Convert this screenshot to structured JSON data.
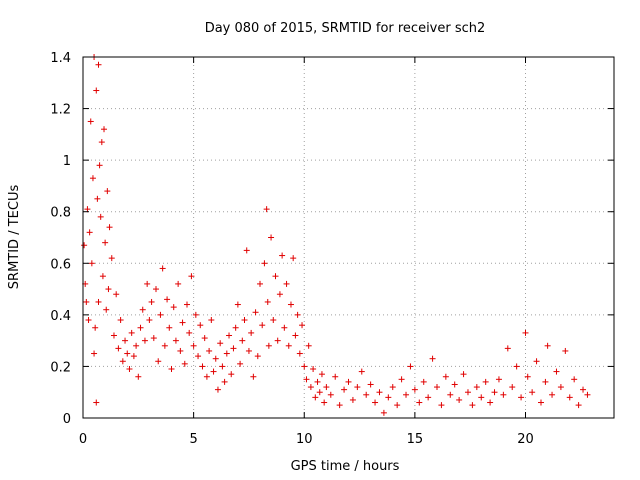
{
  "chart_data": {
    "type": "scatter",
    "title": "Day 080 of 2015, SRMTID for receiver sch2",
    "xlabel": "GPS time / hours",
    "ylabel": "SRMTID / TECUs",
    "xlim": [
      0,
      24
    ],
    "ylim": [
      0,
      1.4
    ],
    "xticks": [
      0,
      5,
      10,
      15,
      20
    ],
    "yticks": [
      0,
      0.2,
      0.4,
      0.6,
      0.8,
      1,
      1.2,
      1.4
    ],
    "xtick_labels": [
      "0",
      "5",
      "10",
      "15",
      "20"
    ],
    "ytick_labels": [
      "0",
      "0.2",
      "0.4",
      "0.6",
      "0.8",
      "1",
      "1.2",
      "1.4"
    ],
    "grid": true,
    "marker": "+",
    "color": "#e00000",
    "series": [
      {
        "name": "SRMTID",
        "points": [
          [
            0.05,
            0.67
          ],
          [
            0.1,
            0.52
          ],
          [
            0.15,
            0.45
          ],
          [
            0.2,
            0.81
          ],
          [
            0.25,
            0.38
          ],
          [
            0.3,
            0.72
          ],
          [
            0.35,
            1.15
          ],
          [
            0.4,
            0.6
          ],
          [
            0.45,
            0.93
          ],
          [
            0.5,
            0.25
          ],
          [
            0.5,
            1.4
          ],
          [
            0.55,
            0.35
          ],
          [
            0.6,
            0.06
          ],
          [
            0.6,
            1.27
          ],
          [
            0.65,
            0.85
          ],
          [
            0.7,
            1.37
          ],
          [
            0.7,
            0.45
          ],
          [
            0.75,
            0.98
          ],
          [
            0.8,
            0.78
          ],
          [
            0.85,
            1.07
          ],
          [
            0.9,
            0.55
          ],
          [
            0.95,
            1.12
          ],
          [
            1.0,
            0.68
          ],
          [
            1.05,
            0.42
          ],
          [
            1.1,
            0.88
          ],
          [
            1.15,
            0.5
          ],
          [
            1.2,
            0.74
          ],
          [
            1.3,
            0.62
          ],
          [
            1.4,
            0.32
          ],
          [
            1.5,
            0.48
          ],
          [
            1.6,
            0.27
          ],
          [
            1.7,
            0.38
          ],
          [
            1.8,
            0.22
          ],
          [
            1.9,
            0.3
          ],
          [
            2.0,
            0.25
          ],
          [
            2.1,
            0.19
          ],
          [
            2.2,
            0.33
          ],
          [
            2.3,
            0.24
          ],
          [
            2.4,
            0.28
          ],
          [
            2.5,
            0.16
          ],
          [
            2.6,
            0.35
          ],
          [
            2.7,
            0.42
          ],
          [
            2.8,
            0.3
          ],
          [
            2.9,
            0.52
          ],
          [
            3.0,
            0.38
          ],
          [
            3.1,
            0.45
          ],
          [
            3.2,
            0.31
          ],
          [
            3.3,
            0.5
          ],
          [
            3.4,
            0.22
          ],
          [
            3.5,
            0.4
          ],
          [
            3.6,
            0.58
          ],
          [
            3.7,
            0.28
          ],
          [
            3.8,
            0.46
          ],
          [
            3.9,
            0.35
          ],
          [
            4.0,
            0.19
          ],
          [
            4.1,
            0.43
          ],
          [
            4.2,
            0.3
          ],
          [
            4.3,
            0.52
          ],
          [
            4.4,
            0.26
          ],
          [
            4.5,
            0.37
          ],
          [
            4.6,
            0.21
          ],
          [
            4.7,
            0.44
          ],
          [
            4.8,
            0.33
          ],
          [
            4.9,
            0.55
          ],
          [
            5.0,
            0.28
          ],
          [
            5.1,
            0.4
          ],
          [
            5.2,
            0.24
          ],
          [
            5.3,
            0.36
          ],
          [
            5.4,
            0.2
          ],
          [
            5.5,
            0.31
          ],
          [
            5.6,
            0.16
          ],
          [
            5.7,
            0.26
          ],
          [
            5.8,
            0.38
          ],
          [
            5.9,
            0.18
          ],
          [
            6.0,
            0.23
          ],
          [
            6.1,
            0.11
          ],
          [
            6.2,
            0.29
          ],
          [
            6.3,
            0.2
          ],
          [
            6.4,
            0.14
          ],
          [
            6.5,
            0.25
          ],
          [
            6.6,
            0.32
          ],
          [
            6.7,
            0.17
          ],
          [
            6.8,
            0.27
          ],
          [
            6.9,
            0.35
          ],
          [
            7.0,
            0.44
          ],
          [
            7.1,
            0.21
          ],
          [
            7.2,
            0.3
          ],
          [
            7.3,
            0.38
          ],
          [
            7.4,
            0.65
          ],
          [
            7.5,
            0.26
          ],
          [
            7.6,
            0.33
          ],
          [
            7.7,
            0.16
          ],
          [
            7.8,
            0.41
          ],
          [
            7.9,
            0.24
          ],
          [
            8.0,
            0.52
          ],
          [
            8.1,
            0.36
          ],
          [
            8.2,
            0.6
          ],
          [
            8.3,
            0.81
          ],
          [
            8.35,
            0.45
          ],
          [
            8.4,
            0.28
          ],
          [
            8.5,
            0.7
          ],
          [
            8.6,
            0.38
          ],
          [
            8.7,
            0.55
          ],
          [
            8.8,
            0.3
          ],
          [
            8.9,
            0.48
          ],
          [
            9.0,
            0.63
          ],
          [
            9.1,
            0.35
          ],
          [
            9.2,
            0.52
          ],
          [
            9.3,
            0.28
          ],
          [
            9.4,
            0.44
          ],
          [
            9.5,
            0.62
          ],
          [
            9.6,
            0.32
          ],
          [
            9.7,
            0.4
          ],
          [
            9.8,
            0.25
          ],
          [
            9.9,
            0.36
          ],
          [
            10.0,
            0.2
          ],
          [
            10.1,
            0.15
          ],
          [
            10.2,
            0.28
          ],
          [
            10.3,
            0.12
          ],
          [
            10.4,
            0.19
          ],
          [
            10.5,
            0.08
          ],
          [
            10.6,
            0.14
          ],
          [
            10.7,
            0.1
          ],
          [
            10.8,
            0.17
          ],
          [
            10.9,
            0.06
          ],
          [
            11.0,
            0.12
          ],
          [
            11.2,
            0.09
          ],
          [
            11.4,
            0.16
          ],
          [
            11.6,
            0.05
          ],
          [
            11.8,
            0.11
          ],
          [
            12.0,
            0.14
          ],
          [
            12.2,
            0.07
          ],
          [
            12.4,
            0.12
          ],
          [
            12.6,
            0.18
          ],
          [
            12.8,
            0.09
          ],
          [
            13.0,
            0.13
          ],
          [
            13.2,
            0.06
          ],
          [
            13.4,
            0.1
          ],
          [
            13.6,
            0.02
          ],
          [
            13.8,
            0.08
          ],
          [
            14.0,
            0.12
          ],
          [
            14.2,
            0.05
          ],
          [
            14.4,
            0.15
          ],
          [
            14.6,
            0.09
          ],
          [
            14.8,
            0.2
          ],
          [
            15.0,
            0.11
          ],
          [
            15.2,
            0.06
          ],
          [
            15.4,
            0.14
          ],
          [
            15.6,
            0.08
          ],
          [
            15.8,
            0.23
          ],
          [
            16.0,
            0.12
          ],
          [
            16.2,
            0.05
          ],
          [
            16.4,
            0.16
          ],
          [
            16.6,
            0.09
          ],
          [
            16.8,
            0.13
          ],
          [
            17.0,
            0.07
          ],
          [
            17.2,
            0.17
          ],
          [
            17.4,
            0.1
          ],
          [
            17.6,
            0.05
          ],
          [
            17.8,
            0.12
          ],
          [
            18.0,
            0.08
          ],
          [
            18.2,
            0.14
          ],
          [
            18.4,
            0.06
          ],
          [
            18.6,
            0.1
          ],
          [
            18.8,
            0.15
          ],
          [
            19.0,
            0.09
          ],
          [
            19.2,
            0.27
          ],
          [
            19.4,
            0.12
          ],
          [
            19.6,
            0.2
          ],
          [
            19.8,
            0.08
          ],
          [
            20.0,
            0.33
          ],
          [
            20.1,
            0.16
          ],
          [
            20.3,
            0.1
          ],
          [
            20.5,
            0.22
          ],
          [
            20.7,
            0.06
          ],
          [
            20.9,
            0.14
          ],
          [
            21.0,
            0.28
          ],
          [
            21.2,
            0.09
          ],
          [
            21.4,
            0.18
          ],
          [
            21.6,
            0.12
          ],
          [
            21.8,
            0.26
          ],
          [
            22.0,
            0.08
          ],
          [
            22.2,
            0.15
          ],
          [
            22.4,
            0.05
          ],
          [
            22.6,
            0.11
          ],
          [
            22.8,
            0.09
          ]
        ]
      }
    ]
  }
}
